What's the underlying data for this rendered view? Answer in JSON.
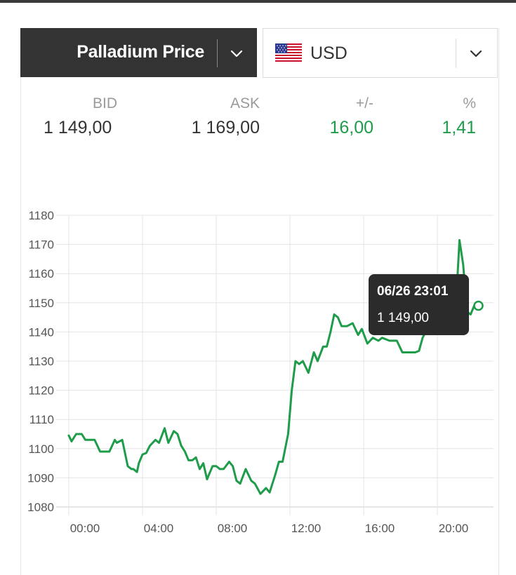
{
  "metal_select": {
    "label": "Palladium Price"
  },
  "currency_select": {
    "label": "USD",
    "flag_icon": "us-flag-icon"
  },
  "quote": {
    "bid_label": "BID",
    "bid_value": "1 149,00",
    "ask_label": "ASK",
    "ask_value": "1 169,00",
    "change_label": "+/-",
    "change_value": "16,00",
    "percent_label": "%",
    "percent_value": "1,41"
  },
  "colors": {
    "positive": "#1e9c4a",
    "line": "#1e9c4a",
    "header_bg": "#333333",
    "tooltip_bg": "#2b2b2b"
  },
  "tooltip": {
    "title": "06/26 23:01",
    "value": "1 149,00"
  },
  "chart_data": {
    "type": "line",
    "x_tick_labels": [
      "00:00",
      "04:00",
      "08:00",
      "12:00",
      "16:00",
      "20:00"
    ],
    "y_tick_labels": [
      "1080",
      "1090",
      "1100",
      "1110",
      "1120",
      "1130",
      "1140",
      "1150",
      "1160",
      "1170",
      "1180"
    ],
    "ylim": [
      1080,
      1180
    ],
    "x_unit": "hours",
    "xlim": [
      0,
      24
    ],
    "grid": true,
    "series": [
      {
        "x": [
          0.0,
          0.15,
          0.4,
          0.7,
          0.9,
          1.4,
          1.7,
          2.1,
          2.2,
          2.5,
          2.6,
          2.9,
          3.2,
          3.4,
          3.5,
          3.7,
          3.8,
          4.0,
          4.2,
          4.4,
          4.7,
          4.9,
          5.2,
          5.4,
          5.7,
          5.9,
          6.1,
          6.3,
          6.5,
          6.7,
          6.9,
          7.1,
          7.3,
          7.5,
          7.6,
          7.8,
          8.0,
          8.2,
          8.4,
          8.7,
          8.9,
          9.1,
          9.3,
          9.6,
          9.9,
          10.1,
          10.4,
          10.7,
          10.9,
          11.2,
          11.4,
          11.6,
          11.9,
          12.1,
          12.3,
          12.5,
          12.7,
          13.0,
          13.3,
          13.5,
          13.8,
          14.0,
          14.2,
          14.4,
          14.6,
          14.8,
          15.1,
          15.4,
          15.7,
          15.9,
          16.2,
          16.5,
          16.8,
          17.0,
          17.4,
          17.8,
          18.1,
          18.3,
          18.6,
          18.8,
          19.0,
          19.2,
          19.6,
          19.9,
          20.0,
          20.2,
          20.5,
          20.8,
          21.0,
          21.2,
          21.4,
          21.6,
          21.8,
          22.0
        ],
        "y": [
          1104.5,
          1102.5,
          1105,
          1105,
          1103,
          1103,
          1099,
          1099,
          1099,
          1103,
          1102,
          1103,
          1094,
          1093,
          1093,
          1092,
          1095,
          1098,
          1098.5,
          1101,
          1103,
          1102,
          1107,
          1102,
          1106,
          1105,
          1101,
          1099,
          1096,
          1096,
          1097,
          1093,
          1095,
          1089.5,
          1091,
          1094,
          1094,
          1093,
          1093,
          1095.5,
          1094,
          1089,
          1088,
          1093,
          1089,
          1088,
          1084.5,
          1086.5,
          1085,
          1091,
          1095.5,
          1095.5,
          1105,
          1120,
          1130,
          1129,
          1130,
          1126,
          1133,
          1130,
          1135,
          1135,
          1140,
          1146,
          1145,
          1142,
          1142,
          1143,
          1139,
          1141,
          1136,
          1138,
          1137,
          1138,
          1137,
          1137,
          1133,
          1133,
          1133,
          1133,
          1133.5,
          1138,
          1143,
          1143,
          1146,
          1148,
          1145,
          1148,
          1148.5,
          1171.5,
          1163,
          1147,
          1146,
          1149
        ]
      }
    ]
  }
}
